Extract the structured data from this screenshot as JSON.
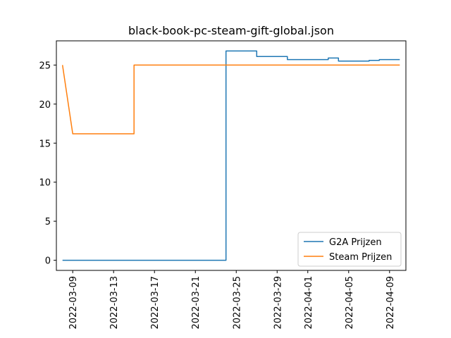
{
  "chart_data": {
    "type": "line",
    "title": "black-book-pc-steam-gift-global.json",
    "xlabel": "",
    "ylabel": "",
    "x_axis": {
      "type": "date",
      "range": [
        "2022-03-07",
        "2022-04-11"
      ],
      "ticks": [
        "2022-03-09",
        "2022-03-13",
        "2022-03-17",
        "2022-03-21",
        "2022-03-25",
        "2022-03-29",
        "2022-04-01",
        "2022-04-05",
        "2022-04-09"
      ]
    },
    "y_axis": {
      "range": [
        -1.3,
        28.1
      ],
      "ticks": [
        0,
        5,
        10,
        15,
        20,
        25
      ]
    },
    "grid": false,
    "legend_position": "lower-right",
    "series": [
      {
        "name": "G2A Prijzen",
        "color": "#1f77b4",
        "points": [
          [
            "2022-03-08",
            0
          ],
          [
            "2022-03-24",
            0
          ],
          [
            "2022-03-24",
            26.8
          ],
          [
            "2022-03-27",
            26.8
          ],
          [
            "2022-03-27",
            26.1
          ],
          [
            "2022-03-30",
            26.1
          ],
          [
            "2022-03-30",
            25.7
          ],
          [
            "2022-04-03",
            25.7
          ],
          [
            "2022-04-03",
            25.9
          ],
          [
            "2022-04-04",
            25.9
          ],
          [
            "2022-04-04",
            25.5
          ],
          [
            "2022-04-07",
            25.5
          ],
          [
            "2022-04-07",
            25.6
          ],
          [
            "2022-04-08",
            25.6
          ],
          [
            "2022-04-08",
            25.7
          ],
          [
            "2022-04-10",
            25.7
          ]
        ]
      },
      {
        "name": "Steam Prijzen",
        "color": "#ff7f0e",
        "points": [
          [
            "2022-03-08",
            25.0
          ],
          [
            "2022-03-08",
            25.0
          ],
          [
            "2022-03-09",
            16.2
          ],
          [
            "2022-03-15",
            16.2
          ],
          [
            "2022-03-15",
            25.0
          ],
          [
            "2022-04-10",
            25.0
          ]
        ]
      }
    ]
  }
}
